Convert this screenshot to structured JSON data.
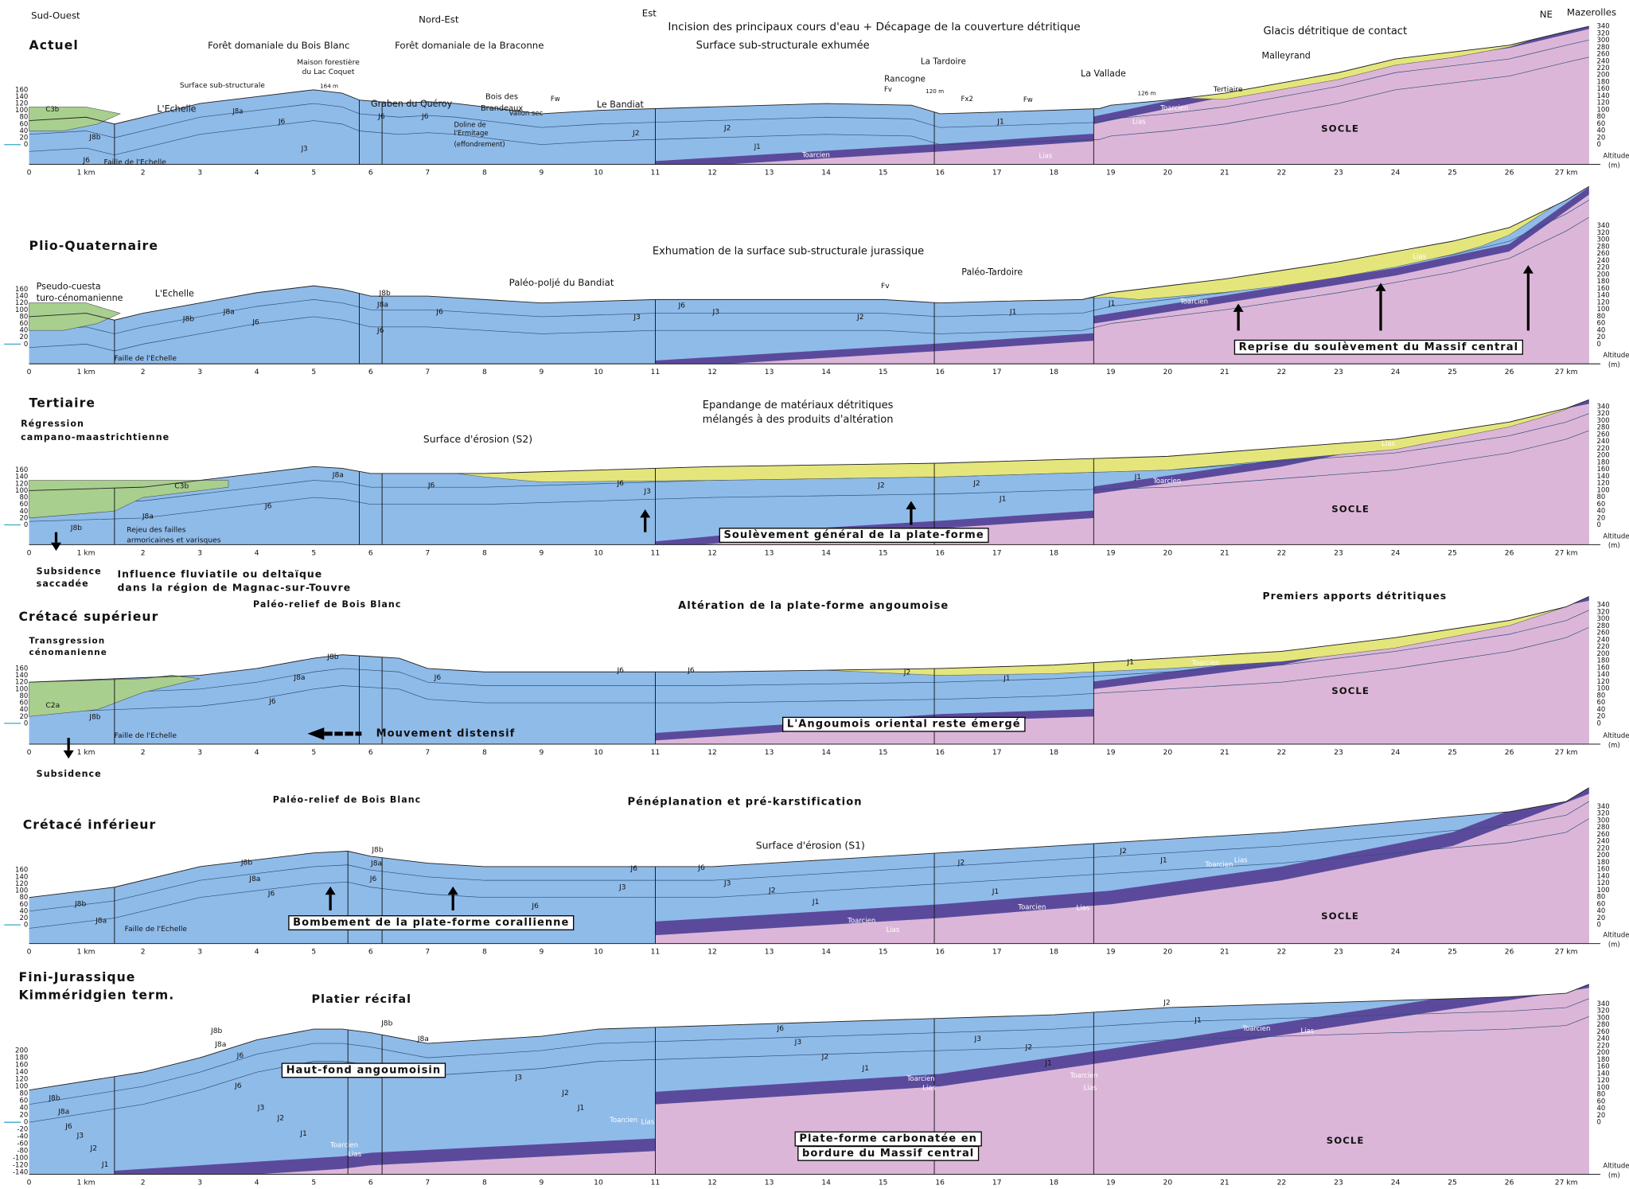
{
  "axis": {
    "km_labels": [
      "0",
      "1 km",
      "2",
      "3",
      "4",
      "5",
      "6",
      "7",
      "8",
      "9",
      "10",
      "11",
      "12",
      "13",
      "14",
      "15",
      "16",
      "17",
      "18",
      "19",
      "20",
      "21",
      "22",
      "23",
      "24",
      "25",
      "26",
      "27 km"
    ],
    "right_ticks": [
      340,
      320,
      300,
      280,
      260,
      240,
      220,
      200,
      180,
      160,
      140,
      120,
      100,
      80,
      60,
      40,
      20,
      0
    ],
    "altitude": [
      "Altitude",
      "(m)"
    ]
  },
  "panels": [
    {
      "left_ticks": [
        160,
        140,
        120,
        100,
        80,
        60,
        40,
        20,
        0
      ],
      "labels": [
        "Sud-Ouest",
        "Nord-Est",
        "Est",
        "NE",
        "Mazerolles",
        "Actuel",
        "Incision des principaux cours d'eau + Décapage de la couverture détritique",
        "Surface sub-structurale exhumée",
        "Glacis détritique de contact",
        "Forêt domaniale du Bois Blanc",
        "Forêt domaniale de la Braconne",
        "Maison forestière",
        "du Lac Coquet",
        "164 m",
        "Surface sub-structurale",
        "Graben du Quéroy",
        "Bois des",
        "Brandeaux",
        "Le Bandiat",
        "Rancogne",
        "La Tardoire",
        "La Vallade",
        "Malleyrand",
        "Tertiaire",
        "L'Echelle",
        "Faille de l'Echelle",
        "Doline de",
        "l'Ermitage",
        "(effondrement)",
        "Vallon sec",
        "SOCLE",
        "Toarcien",
        "Lias",
        "Toarcien",
        "Lias",
        "J6",
        "J8a",
        "J8b",
        "J6",
        "J3",
        "J6",
        "J2",
        "J1",
        "J2",
        "J1",
        "J6",
        "Fw",
        "Fv",
        "Fx2",
        "Fw",
        "120 m",
        "126 m",
        "C3b"
      ]
    },
    {
      "left_ticks": [
        160,
        140,
        120,
        100,
        80,
        60,
        40,
        20,
        0
      ],
      "labels": [
        "Plio-Quaternaire",
        "Exhumation de la surface sub-structurale jurassique",
        "Pseudo-cuesta",
        "turo-cénomanienne",
        "L'Echelle",
        "Paléo-poljé du Bandiat",
        "Fv",
        "Paléo-Tardoire",
        "Reprise du soulèvement du Massif central",
        "Faille de l'Echelle",
        "J6",
        "J8a",
        "J8b",
        "J6",
        "J6",
        "J3",
        "J2",
        "J1",
        "Toarcien",
        "Lias",
        "J8b",
        "J8a",
        "J6",
        "J3",
        "J1"
      ]
    },
    {
      "left_ticks": [
        160,
        140,
        120,
        100,
        80,
        60,
        40,
        20,
        0
      ],
      "labels": [
        "Tertiaire",
        "Régression",
        "campano-maastrichtienne",
        "Epandange de matériaux détritiques",
        "mélangés à des produits d'altération",
        "Surface d'érosion (S2)",
        "Rejeu des failles",
        "armoricaines et varisques",
        "Soulèvement général de la plate-forme",
        "SOCLE",
        "Toarcien",
        "Lias",
        "J8a",
        "J6",
        "J6",
        "J6",
        "J2",
        "J2",
        "J1",
        "J1",
        "J3",
        "J8b",
        "J8a",
        "C3b"
      ]
    },
    {
      "left_ticks": [
        160,
        140,
        120,
        100,
        80,
        60,
        40,
        20,
        0
      ],
      "labels": [
        "Subsidence",
        "saccadée",
        "Influence fluviatile ou deltaïque",
        "dans la région de Magnac-sur-Touvre",
        "Crétacé supérieur",
        "Paléo-relief de Bois Blanc",
        "Altération de la plate-forme angoumoise",
        "Premiers apports détritiques",
        "Transgression",
        "cénomanienne",
        "Mouvement distensif",
        "L'Angoumois oriental reste émergé",
        "Subsidence",
        "Faille de l'Echelle",
        "SOCLE",
        "J8b",
        "J8a",
        "J6",
        "J6",
        "J6",
        "J6",
        "J2",
        "J1",
        "J1",
        "Toarcien",
        "Lias",
        "C2a",
        "J8b"
      ]
    },
    {
      "left_ticks": [
        160,
        140,
        120,
        100,
        80,
        60,
        40,
        20,
        0
      ],
      "labels": [
        "Paléo-relief de Bois Blanc",
        "Pénéplanation et pré-karstification",
        "Crétacé inférieur",
        "Surface d'érosion (S1)",
        "Bombement de la plate-forme corallienne",
        "Faille de l'Echelle",
        "SOCLE",
        "J8b",
        "J8a",
        "J6",
        "J8b",
        "J8a",
        "J6",
        "J6",
        "J3",
        "J6",
        "J3",
        "J2",
        "J1",
        "J1",
        "J2",
        "J2",
        "J1",
        "Toarcien",
        "Lias",
        "Toarcien",
        "Lias",
        "Toarcien",
        "Lias",
        "J8b",
        "J8a",
        "J6"
      ]
    },
    {
      "left_ticks": [
        200,
        180,
        160,
        140,
        120,
        100,
        80,
        60,
        40,
        20,
        0,
        -20,
        -40,
        -60,
        -80,
        -100,
        -120,
        -140
      ],
      "labels": [
        "Fini-Jurassique",
        "Kimméridgien term.",
        "Platier récifal",
        "Haut-fond angoumoisin",
        "Plate-forme carbonatée en",
        "bordure du Massif central",
        "SOCLE",
        "J8b",
        "J8a",
        "J8b",
        "J8a",
        "J6",
        "J6",
        "J3",
        "J2",
        "J1",
        "Toarcien",
        "Lias",
        "J8b",
        "J8a",
        "J6",
        "J3",
        "J2",
        "J1",
        "J6",
        "J3",
        "J2",
        "J1",
        "Toarcien",
        "Lias",
        "J3",
        "J2",
        "J1",
        "Toarcien",
        "Lias",
        "J2",
        "J1",
        "Toarcien",
        "Lias",
        "J3",
        "J2",
        "J1",
        "Toarcien",
        "Lias"
      ]
    }
  ]
}
